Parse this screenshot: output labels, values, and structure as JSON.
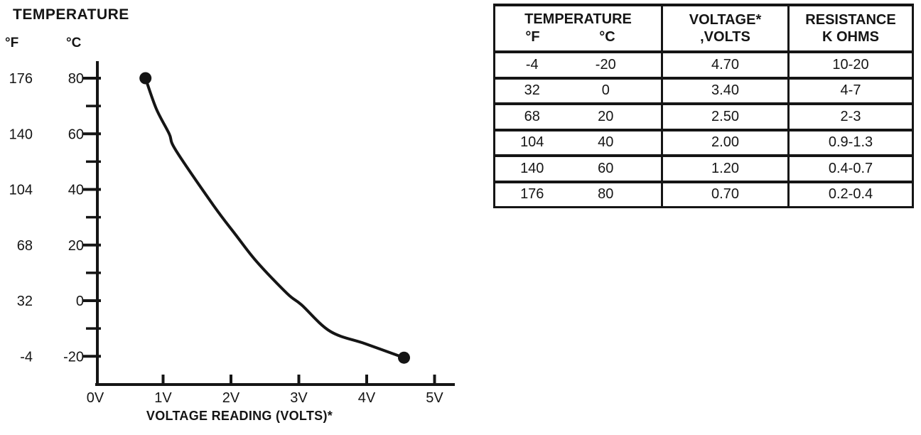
{
  "page": {
    "background": "#ffffff",
    "ink": "#151515"
  },
  "chart": {
    "title": "TEMPERATURE",
    "y_unit_f": "°F",
    "y_unit_c": "°C",
    "x_axis_label": "VOLTAGE READING (VOLTS)*"
  },
  "chart_data": {
    "type": "line",
    "title": "TEMPERATURE",
    "xlabel": "VOLTAGE READING (VOLTS)*",
    "x_unit": "V",
    "y_units": [
      "°F",
      "°C"
    ],
    "xlim": [
      0,
      5.3
    ],
    "ylim_celsius": [
      -31,
      86
    ],
    "grid": false,
    "legend": "none",
    "x_ticks": [
      {
        "v": 0,
        "label": "0V"
      },
      {
        "v": 1,
        "label": "1V"
      },
      {
        "v": 2,
        "label": "2V"
      },
      {
        "v": 3,
        "label": "3V"
      },
      {
        "v": 4,
        "label": "4V"
      },
      {
        "v": 5,
        "label": "5V"
      }
    ],
    "y_ticks": [
      {
        "c": 80,
        "f_label": "176",
        "c_label": "80"
      },
      {
        "c": 60,
        "f_label": "140",
        "c_label": "60"
      },
      {
        "c": 40,
        "f_label": "104",
        "c_label": "40"
      },
      {
        "c": 20,
        "f_label": "68",
        "c_label": "20"
      },
      {
        "c": 0,
        "f_label": "32",
        "c_label": "0"
      },
      {
        "c": -20,
        "f_label": "-4",
        "c_label": "-20"
      }
    ],
    "y_minor_ticks_c": [
      70,
      50,
      30,
      10,
      -10
    ],
    "series": [
      {
        "name": "temperature-vs-voltage-reading",
        "points_volts_celsius": [
          [
            0.74,
            80
          ],
          [
            0.9,
            69
          ],
          [
            1.09,
            60
          ],
          [
            1.19,
            54
          ],
          [
            1.75,
            34
          ],
          [
            2.06,
            24
          ],
          [
            2.38,
            14
          ],
          [
            2.83,
            2.5
          ],
          [
            3.04,
            -1.5
          ],
          [
            3.46,
            -11
          ],
          [
            3.98,
            -15.5
          ],
          [
            4.55,
            -20.5
          ]
        ]
      }
    ],
    "endpoint_markers_volts_celsius": [
      [
        0.74,
        80
      ],
      [
        4.55,
        -20.5
      ]
    ]
  },
  "table": {
    "headers": {
      "temperature": {
        "title": "TEMPERATURE",
        "sub_f": "°F",
        "sub_c": "°C"
      },
      "voltage": {
        "line1": "VOLTAGE*",
        "line2": ",VOLTS"
      },
      "resistance": {
        "line1": "RESISTANCE",
        "line2": "K OHMS"
      }
    },
    "rows": [
      {
        "f": "-4",
        "c": "-20",
        "volts": "4.70",
        "k_ohms": "10-20"
      },
      {
        "f": "32",
        "c": "0",
        "volts": "3.40",
        "k_ohms": "4-7"
      },
      {
        "f": "68",
        "c": "20",
        "volts": "2.50",
        "k_ohms": "2-3"
      },
      {
        "f": "104",
        "c": "40",
        "volts": "2.00",
        "k_ohms": "0.9-1.3"
      },
      {
        "f": "140",
        "c": "60",
        "volts": "1.20",
        "k_ohms": "0.4-0.7"
      },
      {
        "f": "176",
        "c": "80",
        "volts": "0.70",
        "k_ohms": "0.2-0.4"
      }
    ]
  }
}
